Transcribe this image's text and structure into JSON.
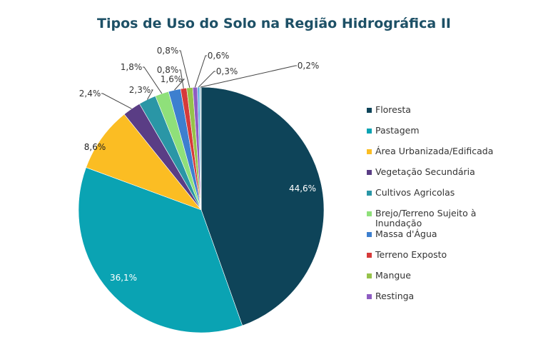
{
  "chart_data": {
    "type": "pie",
    "title": "Tipos de Uso do Solo na Região Hidrográfica II",
    "legend_position": "right",
    "start": "top, clockwise",
    "slices": [
      {
        "label": "Floresta",
        "value": 44.6,
        "text": "44,6%",
        "color": "#0e4459"
      },
      {
        "label": "Pastagem",
        "value": 36.1,
        "text": "36,1%",
        "color": "#0aa3b3"
      },
      {
        "label": "Área Urbanizada/Edificada",
        "value": 8.6,
        "text": "8,6%",
        "color": "#fbbd23"
      },
      {
        "label": "Vegetação Secundária",
        "value": 2.4,
        "text": "2,4%",
        "color": "#5a3d85"
      },
      {
        "label": "Cultivos Agricolas",
        "value": 2.3,
        "text": "2,3%",
        "color": "#2a96a6"
      },
      {
        "label": "Brejo/Terreno Sujeito à Inundação",
        "value": 1.8,
        "text": "1,8%",
        "color": "#8fe07a"
      },
      {
        "label": "Massa d'Água",
        "value": 1.6,
        "text": "1,6%",
        "color": "#3d7fcf"
      },
      {
        "label": "Terreno Exposto",
        "value": 0.8,
        "text": "0,8%",
        "color": "#d63a3a"
      },
      {
        "label": "Mangue",
        "value": 0.8,
        "text": "0,8%",
        "color": "#96c24a"
      },
      {
        "label": "Restinga",
        "value": 0.6,
        "text": "0,6%",
        "color": "#8e5cc2"
      },
      {
        "label": "",
        "value": 0.3,
        "text": "0,3%",
        "color": "#5fb0e0"
      },
      {
        "label": "",
        "value": 0.2,
        "text": "0,2%",
        "color": "#a9c9d6"
      }
    ]
  }
}
